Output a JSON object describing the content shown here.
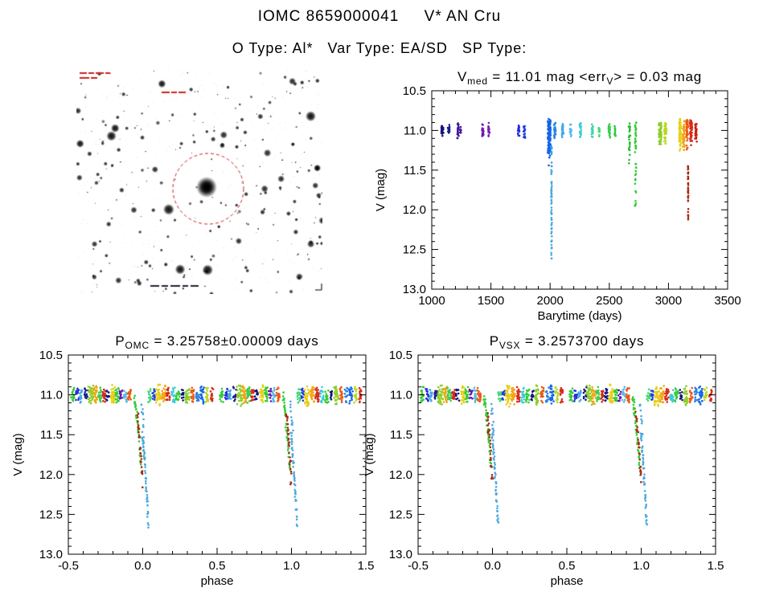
{
  "page": {
    "title": "IOMC 8659000041     V* AN Cru",
    "subtitle": "O Type: Al*   Var Type: EA/SD   SP Type:"
  },
  "finder": {
    "description": "optical finding chart with target star circled",
    "circle_color": "#cc2222",
    "annotation_color": "#cc2222"
  },
  "chart_data": [
    {
      "id": "time-series-plot",
      "type": "scatter",
      "title_parts": [
        [
          "V",
          false
        ],
        [
          "med",
          true
        ],
        [
          " = 11.01 mag <err",
          false
        ],
        [
          "V",
          true
        ],
        [
          "> = 0.03 mag",
          false
        ]
      ],
      "xlabel": "Barytime (days)",
      "ylabel": "V (mag)",
      "xlim": [
        1000,
        3500
      ],
      "ylim": [
        10.5,
        13.0
      ],
      "y_axis_inverted_magnitudes": true,
      "xticks": {
        "major": [
          1000,
          1500,
          2000,
          2500,
          3000,
          3500
        ],
        "labels": [
          "1000",
          "1500",
          "2000",
          "2500",
          "3000",
          "3500"
        ],
        "minor_step": 100
      },
      "yticks": {
        "major": [
          10.5,
          11.0,
          11.5,
          12.0,
          12.5,
          13.0
        ],
        "labels": [
          "10.5",
          "11.0",
          "11.5",
          "12.0",
          "12.5",
          "13.0"
        ],
        "minor_step": 0.1
      },
      "clusters": [
        {
          "x": 1090,
          "hw": 9,
          "vmin": 10.94,
          "vmax": 11.08,
          "c": "#15157e",
          "n": 22,
          "k": "bar"
        },
        {
          "x": 1143,
          "hw": 7,
          "vmin": 10.93,
          "vmax": 11.06,
          "c": "#1c1c8a",
          "n": 18,
          "k": "bar"
        },
        {
          "x": 1222,
          "hw": 6,
          "vmin": 10.9,
          "vmax": 11.1,
          "c": "#3d1a96",
          "n": 22,
          "k": "bar"
        },
        {
          "x": 1243,
          "hw": 4,
          "vmin": 10.95,
          "vmax": 11.07,
          "c": "#4a18a0",
          "n": 10,
          "k": "bar"
        },
        {
          "x": 1432,
          "hw": 7,
          "vmin": 10.92,
          "vmax": 11.1,
          "c": "#681aae",
          "n": 18,
          "k": "bar"
        },
        {
          "x": 1484,
          "hw": 7,
          "vmin": 10.9,
          "vmax": 11.08,
          "c": "#7b20b8",
          "n": 16,
          "k": "bar"
        },
        {
          "x": 1734,
          "hw": 7,
          "vmin": 10.9,
          "vmax": 11.1,
          "c": "#2a2ade",
          "n": 20,
          "k": "bar"
        },
        {
          "x": 1782,
          "hw": 7,
          "vmin": 10.92,
          "vmax": 11.12,
          "c": "#2240e0",
          "n": 18,
          "k": "bar"
        },
        {
          "x": 1992,
          "hw": 12,
          "vmin": 10.85,
          "vmax": 11.45,
          "c": "#1565ea",
          "n": 110,
          "k": "bar"
        },
        {
          "x": 2040,
          "hw": 7,
          "vmin": 10.9,
          "vmax": 11.15,
          "c": "#2a85e4",
          "n": 26,
          "k": "bar"
        },
        {
          "x": 2106,
          "hw": 7,
          "vmin": 10.9,
          "vmax": 11.12,
          "c": "#45a8e6",
          "n": 22,
          "k": "bar"
        },
        {
          "x": 2174,
          "hw": 7,
          "vmin": 10.92,
          "vmax": 11.1,
          "c": "#55bce8",
          "n": 20,
          "k": "bar"
        },
        {
          "x": 2256,
          "hw": 7,
          "vmin": 10.9,
          "vmax": 11.1,
          "c": "#38ccd8",
          "n": 20,
          "k": "bar"
        },
        {
          "x": 2358,
          "hw": 7,
          "vmin": 10.92,
          "vmax": 11.1,
          "c": "#3ed6a6",
          "n": 18,
          "k": "bar"
        },
        {
          "x": 2414,
          "hw": 5,
          "vmin": 10.95,
          "vmax": 11.08,
          "c": "#46da74",
          "n": 14,
          "k": "bar"
        },
        {
          "x": 2500,
          "hw": 7,
          "vmin": 10.9,
          "vmax": 11.1,
          "c": "#3ace4e",
          "n": 20,
          "k": "bar"
        },
        {
          "x": 2549,
          "hw": 5,
          "vmin": 10.94,
          "vmax": 11.1,
          "c": "#32c83e",
          "n": 14,
          "k": "bar"
        },
        {
          "x": 2671,
          "hw": 7,
          "vmin": 10.9,
          "vmax": 11.55,
          "c": "#2abe34",
          "n": 28,
          "k": "bar"
        },
        {
          "x": 2722,
          "hw": 6,
          "vmin": 10.9,
          "vmax": 11.95,
          "c": "#35cc35",
          "n": 40,
          "k": "trail"
        },
        {
          "x": 2930,
          "hw": 11,
          "vmin": 10.88,
          "vmax": 11.2,
          "c": "#8ccf2a",
          "n": 55,
          "k": "bar"
        },
        {
          "x": 2974,
          "hw": 9,
          "vmin": 10.9,
          "vmax": 11.18,
          "c": "#b8d822",
          "n": 36,
          "k": "bar"
        },
        {
          "x": 3098,
          "hw": 9,
          "vmin": 10.85,
          "vmax": 11.3,
          "c": "#e6d019",
          "n": 60,
          "k": "bar"
        },
        {
          "x": 3128,
          "hw": 7,
          "vmin": 10.88,
          "vmax": 11.25,
          "c": "#f2a515",
          "n": 45,
          "k": "bar"
        },
        {
          "x": 3158,
          "hw": 7,
          "vmin": 10.85,
          "vmax": 11.25,
          "c": "#ea5a12",
          "n": 50,
          "k": "bar"
        },
        {
          "x": 3192,
          "hw": 9,
          "vmin": 10.85,
          "vmax": 11.2,
          "c": "#da2a1a",
          "n": 55,
          "k": "bar"
        },
        {
          "x": 3232,
          "hw": 7,
          "vmin": 10.9,
          "vmax": 11.15,
          "c": "#c82014",
          "n": 26,
          "k": "bar"
        },
        {
          "x": 2012,
          "hw": 3,
          "vmin": 11.5,
          "vmax": 12.65,
          "c": "#4aaade",
          "n": 55,
          "k": "trail"
        },
        {
          "x": 2012,
          "hw": 3,
          "vmin": 11.18,
          "vmax": 11.5,
          "c": "#3f9fd8",
          "n": 10,
          "k": "trail"
        },
        {
          "x": 3166,
          "hw": 2,
          "vmin": 11.45,
          "vmax": 12.15,
          "c": "#aa2e16",
          "n": 38,
          "k": "trail"
        }
      ]
    },
    {
      "id": "phase-omc-plot",
      "type": "scatter",
      "title_parts": [
        [
          "P",
          false
        ],
        [
          "OMC",
          true
        ],
        [
          " = 3.25758±0.00009 days",
          false
        ]
      ],
      "xlabel": "phase",
      "ylabel": "V (mag)",
      "xlim": [
        -0.5,
        1.5
      ],
      "ylim": [
        10.5,
        13.0
      ],
      "y_axis_inverted_magnitudes": true,
      "xticks": {
        "major": [
          -0.5,
          0.0,
          0.5,
          1.0,
          1.5
        ],
        "labels": [
          "-0.5",
          "0.0",
          "0.5",
          "1.0",
          "1.5"
        ],
        "minor_step": 0.1
      },
      "yticks": {
        "major": [
          10.5,
          11.0,
          11.5,
          12.0,
          12.5,
          13.0
        ],
        "labels": [
          "10.5",
          "11.0",
          "11.5",
          "12.0",
          "12.5",
          "13.0"
        ],
        "minor_step": 0.1
      },
      "use_phase_fold": true
    },
    {
      "id": "phase-vsx-plot",
      "type": "scatter",
      "title_parts": [
        [
          "P",
          false
        ],
        [
          "VSX",
          true
        ],
        [
          " = 3.2573700 days",
          false
        ]
      ],
      "xlabel": "phase",
      "ylabel": "V (mag)",
      "xlim": [
        -0.5,
        1.5
      ],
      "ylim": [
        10.5,
        13.0
      ],
      "y_axis_inverted_magnitudes": true,
      "xticks": {
        "major": [
          -0.5,
          0.0,
          0.5,
          1.0,
          1.5
        ],
        "labels": [
          "-0.5",
          "0.0",
          "0.5",
          "1.0",
          "1.5"
        ],
        "minor_step": 0.1
      },
      "yticks": {
        "major": [
          10.5,
          11.0,
          11.5,
          12.0,
          12.5,
          13.0
        ],
        "labels": [
          "10.5",
          "11.0",
          "11.5",
          "12.0",
          "12.5",
          "13.0"
        ],
        "minor_step": 0.1
      },
      "use_phase_fold": true
    }
  ],
  "phase_fold": {
    "baseline_magnitude": 11.0,
    "eclipse_depth_magnitude": 12.65,
    "baseline_clusters": [
      {
        "x": -0.47,
        "hw": 0.012,
        "vmin": 10.9,
        "vmax": 11.1,
        "c": "#35cc35",
        "n": 18,
        "k": "bar"
      },
      {
        "x": -0.44,
        "hw": 0.01,
        "vmin": 10.92,
        "vmax": 11.08,
        "c": "#2a2ade",
        "n": 13,
        "k": "bar"
      },
      {
        "x": -0.415,
        "hw": 0.01,
        "vmin": 10.92,
        "vmax": 11.1,
        "c": "#45a8e6",
        "n": 15,
        "k": "bar"
      },
      {
        "x": -0.38,
        "hw": 0.012,
        "vmin": 10.9,
        "vmax": 11.08,
        "c": "#1c1c8a",
        "n": 13,
        "k": "bar"
      },
      {
        "x": -0.35,
        "hw": 0.018,
        "vmin": 10.88,
        "vmax": 11.15,
        "c": "#8ccf2a",
        "n": 34,
        "k": "bar"
      },
      {
        "x": -0.318,
        "hw": 0.013,
        "vmin": 10.88,
        "vmax": 11.12,
        "c": "#f2a515",
        "n": 26,
        "k": "bar"
      },
      {
        "x": -0.29,
        "hw": 0.012,
        "vmin": 10.9,
        "vmax": 11.1,
        "c": "#3ace4e",
        "n": 20,
        "k": "bar"
      },
      {
        "x": -0.263,
        "hw": 0.01,
        "vmin": 10.9,
        "vmax": 11.1,
        "c": "#da2a1a",
        "n": 17,
        "k": "bar"
      },
      {
        "x": -0.235,
        "hw": 0.011,
        "vmin": 10.92,
        "vmax": 11.08,
        "c": "#15157e",
        "n": 13,
        "k": "bar"
      },
      {
        "x": -0.2,
        "hw": 0.014,
        "vmin": 10.87,
        "vmax": 11.12,
        "c": "#e6d019",
        "n": 30,
        "k": "bar"
      },
      {
        "x": -0.172,
        "hw": 0.011,
        "vmin": 10.9,
        "vmax": 11.1,
        "c": "#35cc35",
        "n": 20,
        "k": "bar"
      },
      {
        "x": -0.145,
        "hw": 0.01,
        "vmin": 10.92,
        "vmax": 11.08,
        "c": "#681aae",
        "n": 12,
        "k": "bar"
      },
      {
        "x": -0.118,
        "hw": 0.01,
        "vmin": 10.9,
        "vmax": 11.1,
        "c": "#55bce8",
        "n": 16,
        "k": "bar"
      },
      {
        "x": -0.09,
        "hw": 0.011,
        "vmin": 10.9,
        "vmax": 11.1,
        "c": "#ea5a12",
        "n": 18,
        "k": "bar"
      },
      {
        "x": 0.048,
        "hw": 0.011,
        "vmin": 10.92,
        "vmax": 11.1,
        "c": "#46da74",
        "n": 16,
        "k": "bar"
      },
      {
        "x": 0.075,
        "hw": 0.01,
        "vmin": 10.92,
        "vmax": 11.08,
        "c": "#2240e0",
        "n": 13,
        "k": "bar"
      },
      {
        "x": 0.105,
        "hw": 0.016,
        "vmin": 10.87,
        "vmax": 11.15,
        "c": "#e6d019",
        "n": 32,
        "k": "bar"
      },
      {
        "x": 0.14,
        "hw": 0.013,
        "vmin": 10.88,
        "vmax": 11.12,
        "c": "#f2a515",
        "n": 26,
        "k": "bar"
      },
      {
        "x": 0.172,
        "hw": 0.012,
        "vmin": 10.9,
        "vmax": 11.1,
        "c": "#da2a1a",
        "n": 22,
        "k": "bar"
      },
      {
        "x": 0.205,
        "hw": 0.011,
        "vmin": 10.9,
        "vmax": 11.1,
        "c": "#38ccd8",
        "n": 17,
        "k": "bar"
      },
      {
        "x": 0.237,
        "hw": 0.012,
        "vmin": 10.9,
        "vmax": 11.1,
        "c": "#35cc35",
        "n": 20,
        "k": "bar"
      },
      {
        "x": 0.268,
        "hw": 0.009,
        "vmin": 10.92,
        "vmax": 11.08,
        "c": "#15157e",
        "n": 11,
        "k": "bar"
      },
      {
        "x": 0.3,
        "hw": 0.014,
        "vmin": 10.88,
        "vmax": 11.13,
        "c": "#8ccf2a",
        "n": 28,
        "k": "bar"
      },
      {
        "x": 0.335,
        "hw": 0.01,
        "vmin": 10.9,
        "vmax": 11.1,
        "c": "#ea5a12",
        "n": 18,
        "k": "bar"
      },
      {
        "x": 0.368,
        "hw": 0.011,
        "vmin": 10.9,
        "vmax": 11.1,
        "c": "#2a85e4",
        "n": 15,
        "k": "bar"
      },
      {
        "x": 0.4,
        "hw": 0.012,
        "vmin": 10.88,
        "vmax": 11.12,
        "c": "#1565ea",
        "n": 26,
        "k": "bar"
      },
      {
        "x": 0.432,
        "hw": 0.01,
        "vmin": 10.9,
        "vmax": 11.1,
        "c": "#b8d822",
        "n": 16,
        "k": "bar"
      },
      {
        "x": 0.465,
        "hw": 0.01,
        "vmin": 10.9,
        "vmax": 11.1,
        "c": "#da2a1a",
        "n": 15,
        "k": "bar"
      }
    ],
    "eclipse_segments": [
      {
        "p0": -0.058,
        "p1": -0.008,
        "v0": 11.02,
        "v1": 11.95,
        "c": "#35cc35",
        "n": 42
      },
      {
        "p0": -0.035,
        "p1": 0.0,
        "v0": 11.25,
        "v1": 12.12,
        "c": "#aa2e16",
        "n": 30
      },
      {
        "p0": -0.002,
        "p1": 0.038,
        "v0": 11.5,
        "v1": 12.65,
        "c": "#4aaade",
        "n": 50
      },
      {
        "p0": -0.01,
        "p1": 0.01,
        "v0": 11.1,
        "v1": 11.5,
        "c": "#4aaade",
        "n": 10
      }
    ]
  }
}
